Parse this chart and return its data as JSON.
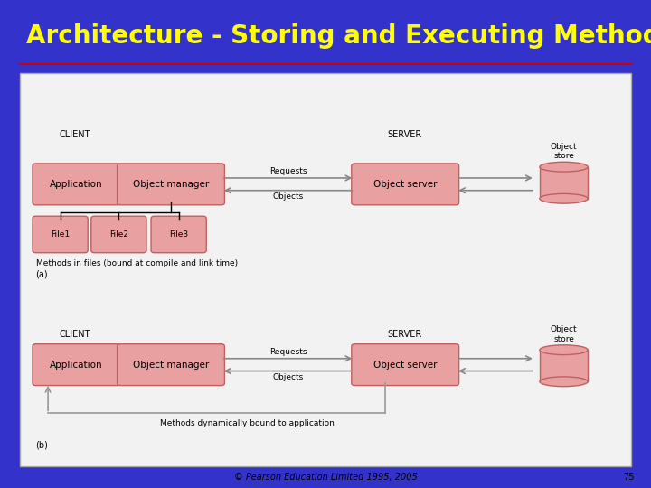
{
  "title": "Architecture - Storing and Executing Methods",
  "title_color": "#FFFF00",
  "title_fontsize": 20,
  "bg_color": "#3333CC",
  "panel_bg": "#F2F2F2",
  "box_fill": "#E8A0A0",
  "box_edge": "#C06060",
  "copyright": "© Pearson Education Limited 1995, 2005",
  "slide_num": "75",
  "underline_color": "#CC0000",
  "arrow_color": "#888888",
  "loop_color": "#999999"
}
